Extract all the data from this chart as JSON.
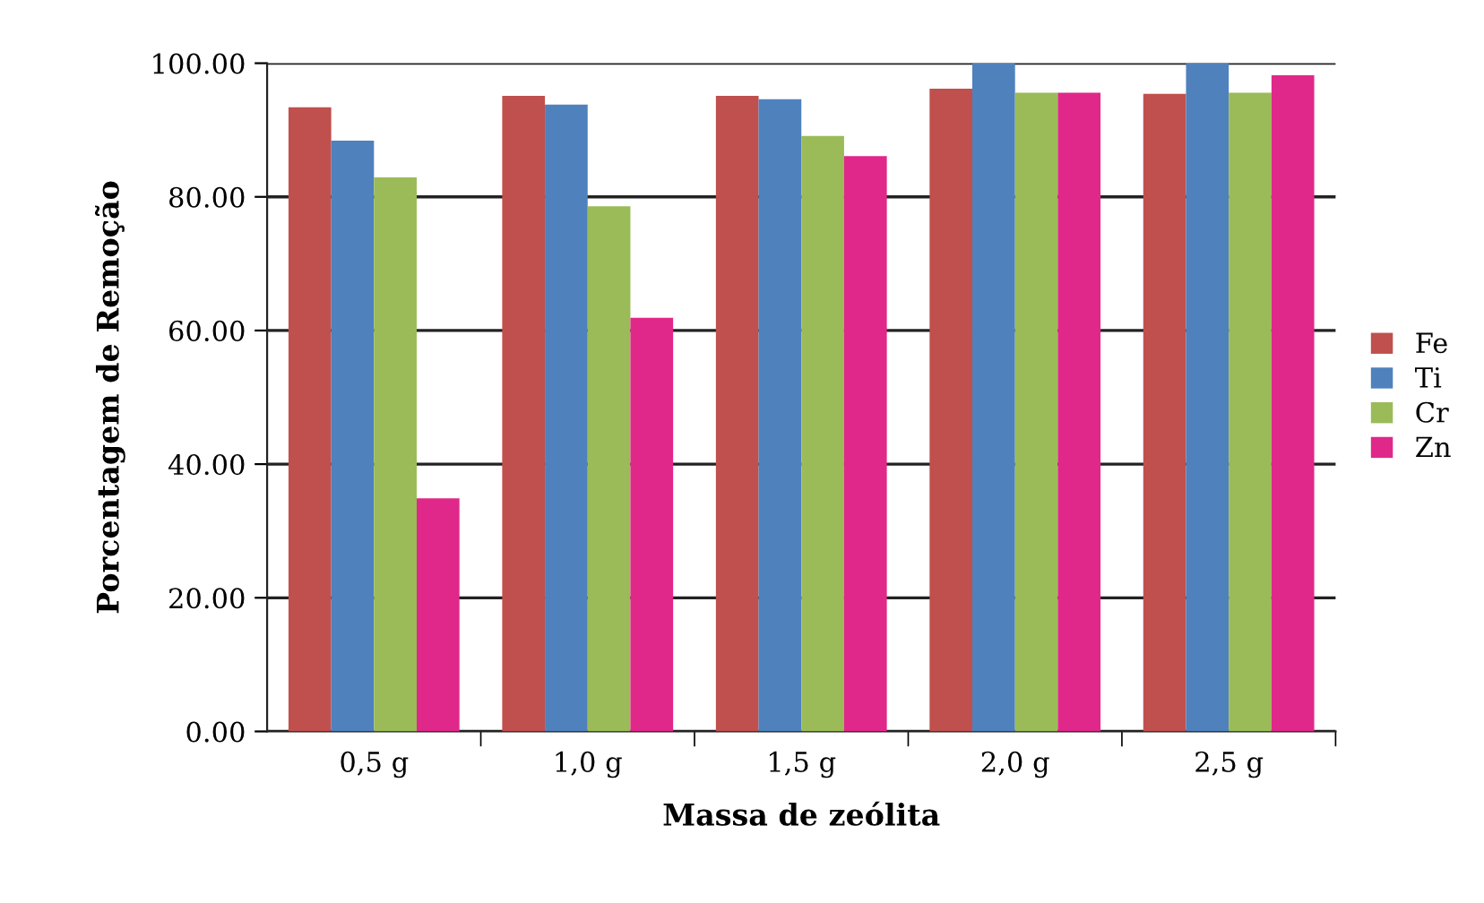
{
  "chart_data": {
    "type": "bar",
    "xlabel": "Massa de zeólita",
    "ylabel": "Porcentagem de Remoção",
    "categories": [
      "0,5 g",
      "1,0 g",
      "1,5 g",
      "2,0 g",
      "2,5 g"
    ],
    "series": [
      {
        "name": "Fe",
        "color": "#c0504d",
        "values": [
          93.4,
          95.1,
          95.1,
          96.2,
          95.4
        ]
      },
      {
        "name": "Ti",
        "color": "#4f81bd",
        "values": [
          88.4,
          93.8,
          94.6,
          100,
          100
        ]
      },
      {
        "name": "Cr",
        "color": "#9bbb59",
        "values": [
          82.9,
          78.6,
          89.1,
          95.6,
          95.6
        ]
      },
      {
        "name": "Zn",
        "color": "#e0288a",
        "values": [
          34.9,
          61.9,
          86.1,
          95.6,
          98.2
        ]
      }
    ],
    "ylim": [
      0,
      100
    ],
    "yticks": [
      {
        "value": 0,
        "label": "0.00"
      },
      {
        "value": 20,
        "label": "20.00"
      },
      {
        "value": 40,
        "label": "40.00"
      },
      {
        "value": 60,
        "label": "60.00"
      },
      {
        "value": 80,
        "label": "80.00"
      },
      {
        "value": 100,
        "label": "100.00"
      }
    ],
    "grid": "y",
    "legend": "right"
  }
}
